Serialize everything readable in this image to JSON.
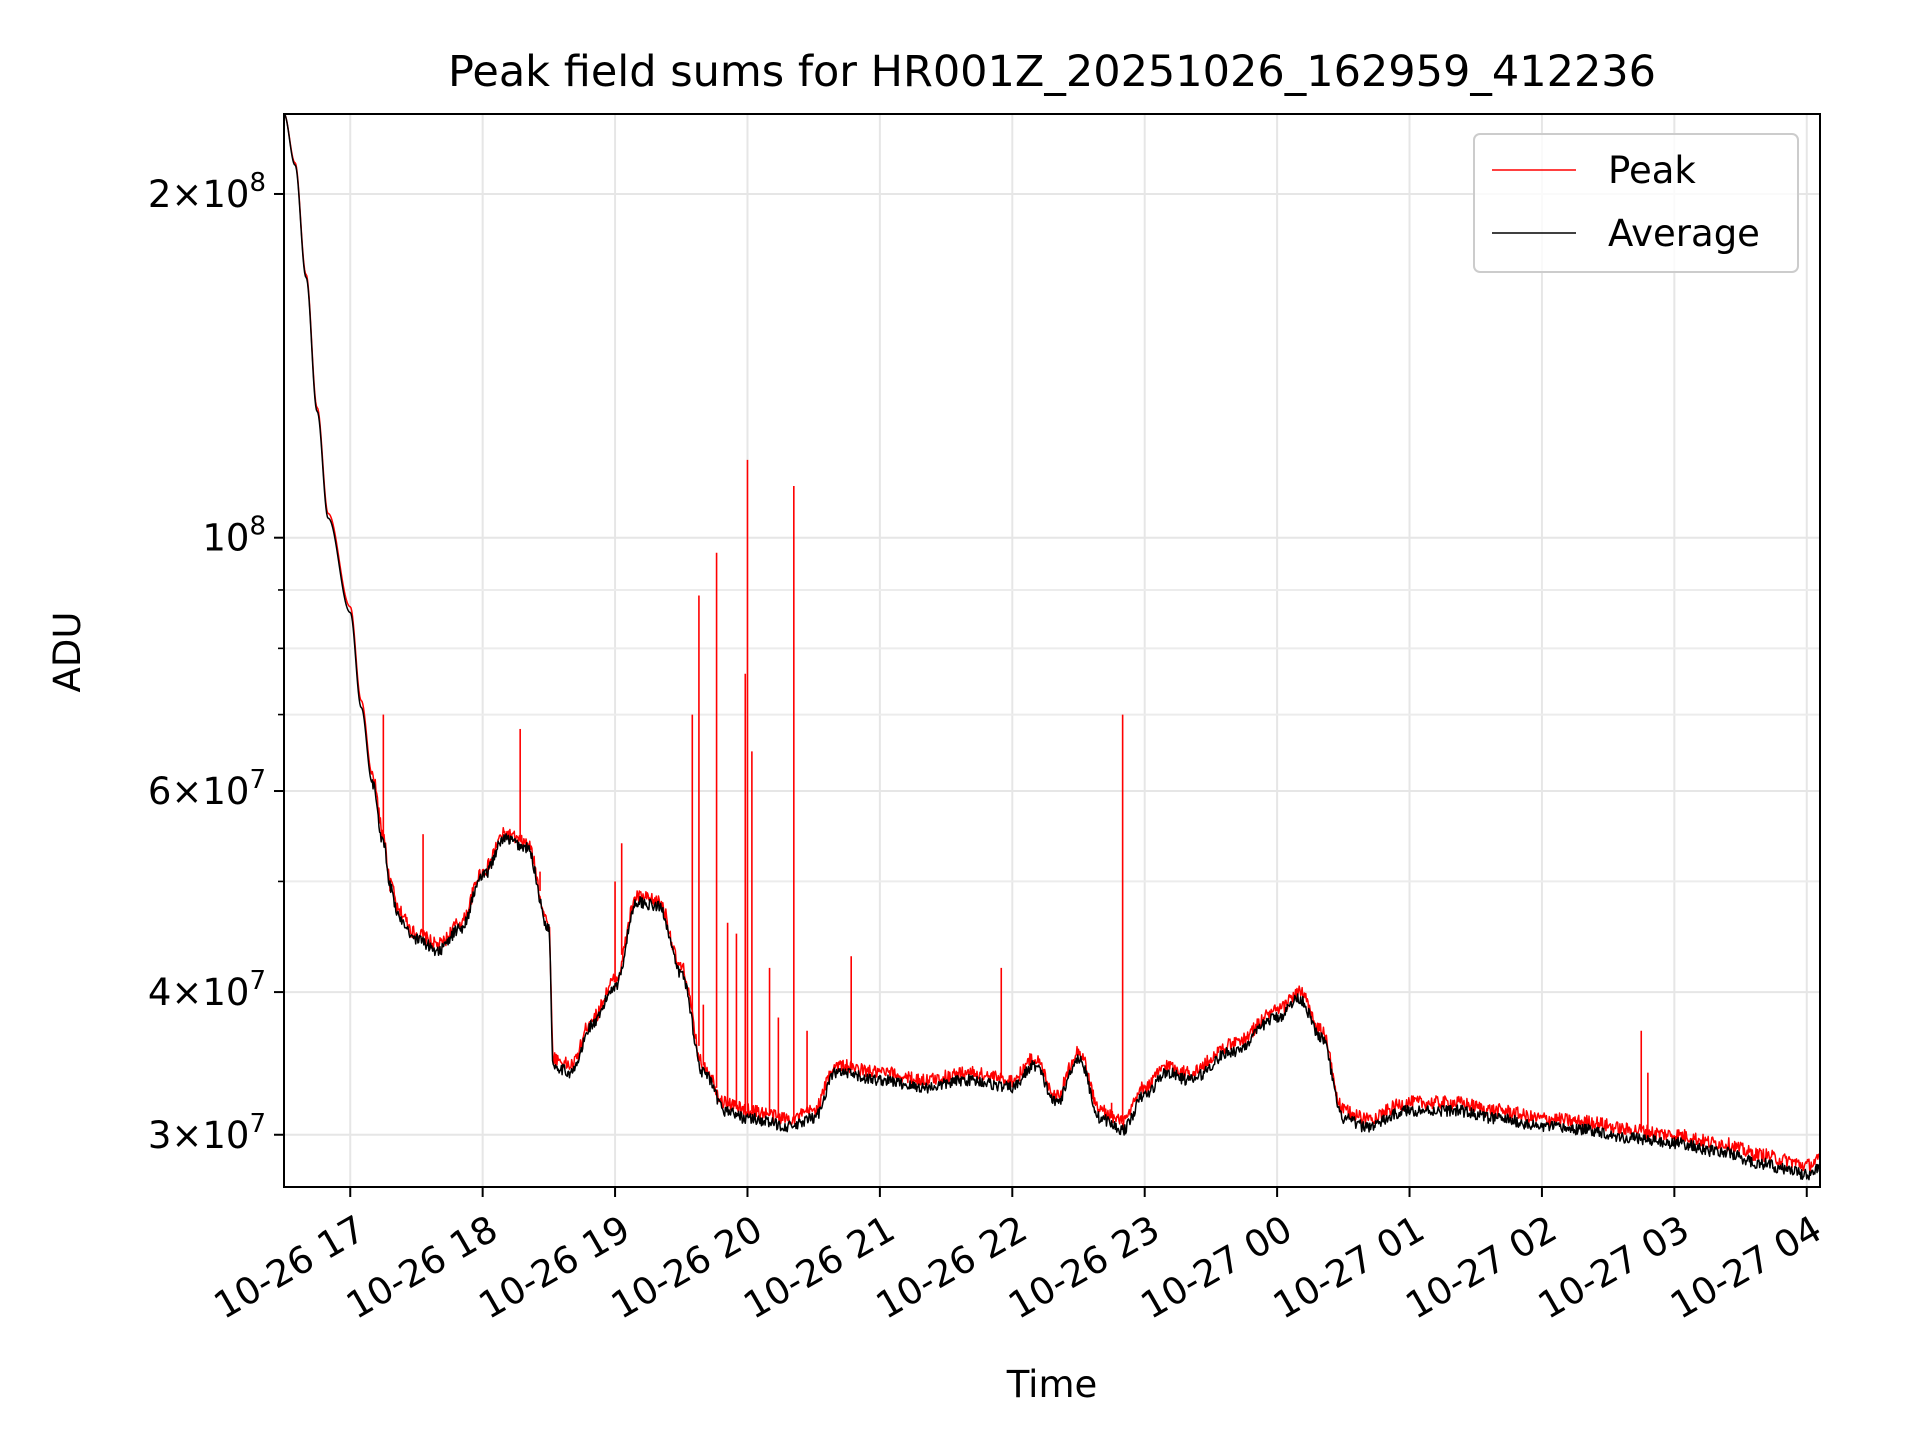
{
  "chart_data": {
    "type": "line",
    "title": "Peak field sums for HR001Z_20251026_162959_412236",
    "xlabel": "Time",
    "ylabel": "ADU",
    "yscale": "log",
    "grid": true,
    "legend_position": "top-right",
    "xlim": [
      "2025-10-26 16:29:59",
      "2025-10-27 04:06:00"
    ],
    "ylim": [
      27000000,
      235000000
    ],
    "x_ticks": [
      {
        "t": "2025-10-26 17:00",
        "label": "10-26 17"
      },
      {
        "t": "2025-10-26 18:00",
        "label": "10-26 18"
      },
      {
        "t": "2025-10-26 19:00",
        "label": "10-26 19"
      },
      {
        "t": "2025-10-26 20:00",
        "label": "10-26 20"
      },
      {
        "t": "2025-10-26 21:00",
        "label": "10-26 21"
      },
      {
        "t": "2025-10-26 22:00",
        "label": "10-26 22"
      },
      {
        "t": "2025-10-26 23:00",
        "label": "10-26 23"
      },
      {
        "t": "2025-10-27 00:00",
        "label": "10-27 00"
      },
      {
        "t": "2025-10-27 01:00",
        "label": "10-27 01"
      },
      {
        "t": "2025-10-27 02:00",
        "label": "10-27 02"
      },
      {
        "t": "2025-10-27 03:00",
        "label": "10-27 03"
      },
      {
        "t": "2025-10-27 04:00",
        "label": "10-27 04"
      }
    ],
    "y_major_ticks": [
      {
        "value": 30000000,
        "base": "3",
        "exp": "7"
      },
      {
        "value": 40000000,
        "base": "4",
        "exp": "7"
      },
      {
        "value": 60000000,
        "base": "6",
        "exp": "7"
      },
      {
        "value": 100000000,
        "base": "",
        "exp": "8"
      },
      {
        "value": 200000000,
        "base": "2",
        "exp": "8"
      }
    ],
    "y_minor_ticks": [
      50000000,
      70000000,
      80000000,
      90000000
    ],
    "series": [
      {
        "name": "Peak",
        "color": "#ff0000",
        "points": [
          [
            "2025-10-26 16:30",
            235000000
          ],
          [
            "2025-10-26 16:35",
            213000000
          ],
          [
            "2025-10-26 16:40",
            170000000
          ],
          [
            "2025-10-26 16:45",
            130000000
          ],
          [
            "2025-10-26 16:50",
            105000000
          ],
          [
            "2025-10-26 17:00",
            87000000
          ],
          [
            "2025-10-26 17:05",
            72000000
          ],
          [
            "2025-10-26 17:10",
            62000000
          ],
          [
            "2025-10-26 17:15",
            55000000
          ],
          [
            "2025-10-26 17:18",
            50000000
          ],
          [
            "2025-10-26 17:22",
            47000000
          ],
          [
            "2025-10-26 17:30",
            45000000
          ],
          [
            "2025-10-26 17:40",
            44000000
          ],
          [
            "2025-10-26 17:50",
            46000000
          ],
          [
            "2025-10-26 18:00",
            51000000
          ],
          [
            "2025-10-26 18:10",
            55000000
          ],
          [
            "2025-10-26 18:20",
            54000000
          ],
          [
            "2025-10-26 18:30",
            46000000
          ],
          [
            "2025-10-26 18:32",
            35000000
          ],
          [
            "2025-10-26 18:40",
            34500000
          ],
          [
            "2025-10-26 18:50",
            38000000
          ],
          [
            "2025-10-26 19:00",
            41000000
          ],
          [
            "2025-10-26 19:10",
            48500000
          ],
          [
            "2025-10-26 19:20",
            48000000
          ],
          [
            "2025-10-26 19:30",
            42000000
          ],
          [
            "2025-10-26 19:40",
            34500000
          ],
          [
            "2025-10-26 19:50",
            32000000
          ],
          [
            "2025-10-26 20:00",
            31500000
          ],
          [
            "2025-10-26 20:20",
            31000000
          ],
          [
            "2025-10-26 20:30",
            31500000
          ],
          [
            "2025-10-26 20:40",
            34500000
          ],
          [
            "2025-10-26 21:00",
            34000000
          ],
          [
            "2025-10-26 21:20",
            33500000
          ],
          [
            "2025-10-26 21:40",
            34000000
          ],
          [
            "2025-10-26 22:00",
            33500000
          ],
          [
            "2025-10-26 22:10",
            35000000
          ],
          [
            "2025-10-26 22:20",
            32500000
          ],
          [
            "2025-10-26 22:30",
            35500000
          ],
          [
            "2025-10-26 22:40",
            31500000
          ],
          [
            "2025-10-26 22:50",
            30800000
          ],
          [
            "2025-10-26 23:00",
            33000000
          ],
          [
            "2025-10-26 23:10",
            34500000
          ],
          [
            "2025-10-26 23:20",
            34000000
          ],
          [
            "2025-10-26 23:40",
            36000000
          ],
          [
            "2025-10-27 00:00",
            38500000
          ],
          [
            "2025-10-27 00:10",
            40000000
          ],
          [
            "2025-10-27 00:20",
            37000000
          ],
          [
            "2025-10-27 00:30",
            31500000
          ],
          [
            "2025-10-27 00:40",
            31000000
          ],
          [
            "2025-10-27 01:00",
            32000000
          ],
          [
            "2025-10-27 01:20",
            32000000
          ],
          [
            "2025-10-27 01:40",
            31500000
          ],
          [
            "2025-10-27 02:00",
            31000000
          ],
          [
            "2025-10-27 02:20",
            30800000
          ],
          [
            "2025-10-27 02:40",
            30300000
          ],
          [
            "2025-10-27 03:00",
            30000000
          ],
          [
            "2025-10-27 03:20",
            29500000
          ],
          [
            "2025-10-27 03:40",
            28800000
          ],
          [
            "2025-10-27 03:50",
            28500000
          ],
          [
            "2025-10-27 04:00",
            28200000
          ],
          [
            "2025-10-27 04:06",
            28500000
          ]
        ]
      },
      {
        "name": "Average",
        "color": "#000000",
        "points": [
          [
            "2025-10-26 16:30",
            235000000
          ],
          [
            "2025-10-26 16:35",
            212000000
          ],
          [
            "2025-10-26 16:40",
            169000000
          ],
          [
            "2025-10-26 16:45",
            129000000
          ],
          [
            "2025-10-26 16:50",
            104000000
          ],
          [
            "2025-10-26 17:00",
            86000000
          ],
          [
            "2025-10-26 17:05",
            71000000
          ],
          [
            "2025-10-26 17:10",
            61000000
          ],
          [
            "2025-10-26 17:15",
            54000000
          ],
          [
            "2025-10-26 17:18",
            49500000
          ],
          [
            "2025-10-26 17:22",
            46500000
          ],
          [
            "2025-10-26 17:30",
            44500000
          ],
          [
            "2025-10-26 17:40",
            43500000
          ],
          [
            "2025-10-26 17:50",
            45500000
          ],
          [
            "2025-10-26 18:00",
            50500000
          ],
          [
            "2025-10-26 18:10",
            54500000
          ],
          [
            "2025-10-26 18:20",
            53500000
          ],
          [
            "2025-10-26 18:30",
            45500000
          ],
          [
            "2025-10-26 18:32",
            34500000
          ],
          [
            "2025-10-26 18:40",
            34000000
          ],
          [
            "2025-10-26 18:50",
            37500000
          ],
          [
            "2025-10-26 19:00",
            40500000
          ],
          [
            "2025-10-26 19:10",
            48000000
          ],
          [
            "2025-10-26 19:20",
            47500000
          ],
          [
            "2025-10-26 19:30",
            41500000
          ],
          [
            "2025-10-26 19:40",
            34000000
          ],
          [
            "2025-10-26 19:50",
            31500000
          ],
          [
            "2025-10-26 20:00",
            31000000
          ],
          [
            "2025-10-26 20:20",
            30500000
          ],
          [
            "2025-10-26 20:30",
            31000000
          ],
          [
            "2025-10-26 20:40",
            34000000
          ],
          [
            "2025-10-26 21:00",
            33500000
          ],
          [
            "2025-10-26 21:20",
            33000000
          ],
          [
            "2025-10-26 21:40",
            33500000
          ],
          [
            "2025-10-26 22:00",
            33000000
          ],
          [
            "2025-10-26 22:10",
            34500000
          ],
          [
            "2025-10-26 22:20",
            32000000
          ],
          [
            "2025-10-26 22:30",
            35000000
          ],
          [
            "2025-10-26 22:40",
            31000000
          ],
          [
            "2025-10-26 22:50",
            30300000
          ],
          [
            "2025-10-26 23:00",
            32500000
          ],
          [
            "2025-10-26 23:10",
            34000000
          ],
          [
            "2025-10-26 23:20",
            33500000
          ],
          [
            "2025-10-26 23:40",
            35500000
          ],
          [
            "2025-10-27 00:00",
            38000000
          ],
          [
            "2025-10-27 00:10",
            39500000
          ],
          [
            "2025-10-27 00:20",
            36500000
          ],
          [
            "2025-10-27 00:30",
            31000000
          ],
          [
            "2025-10-27 00:40",
            30500000
          ],
          [
            "2025-10-27 01:00",
            31500000
          ],
          [
            "2025-10-27 01:20",
            31500000
          ],
          [
            "2025-10-27 01:40",
            31000000
          ],
          [
            "2025-10-27 02:00",
            30500000
          ],
          [
            "2025-10-27 02:20",
            30300000
          ],
          [
            "2025-10-27 02:40",
            29800000
          ],
          [
            "2025-10-27 03:00",
            29500000
          ],
          [
            "2025-10-27 03:20",
            29000000
          ],
          [
            "2025-10-27 03:40",
            28300000
          ],
          [
            "2025-10-27 03:50",
            28000000
          ],
          [
            "2025-10-27 04:00",
            27700000
          ],
          [
            "2025-10-27 04:06",
            28000000
          ]
        ]
      }
    ],
    "peak_spikes": [
      [
        "2025-10-26 17:15",
        70000000
      ],
      [
        "2025-10-26 17:18",
        49000000
      ],
      [
        "2025-10-26 17:33",
        55000000
      ],
      [
        "2025-10-26 18:17",
        68000000
      ],
      [
        "2025-10-26 18:26",
        51000000
      ],
      [
        "2025-10-26 19:00",
        50000000
      ],
      [
        "2025-10-26 19:03",
        54000000
      ],
      [
        "2025-10-26 19:35",
        70000000
      ],
      [
        "2025-10-26 19:38",
        89000000
      ],
      [
        "2025-10-26 19:40",
        39000000
      ],
      [
        "2025-10-26 19:46",
        97000000
      ],
      [
        "2025-10-26 19:51",
        46000000
      ],
      [
        "2025-10-26 19:55",
        45000000
      ],
      [
        "2025-10-26 19:59",
        76000000
      ],
      [
        "2025-10-26 20:00",
        117000000
      ],
      [
        "2025-10-26 20:02",
        65000000
      ],
      [
        "2025-10-26 20:10",
        42000000
      ],
      [
        "2025-10-26 20:14",
        38000000
      ],
      [
        "2025-10-26 20:21",
        111000000
      ],
      [
        "2025-10-26 20:27",
        37000000
      ],
      [
        "2025-10-26 20:47",
        43000000
      ],
      [
        "2025-10-26 21:55",
        42000000
      ],
      [
        "2025-10-26 22:45",
        32000000
      ],
      [
        "2025-10-26 22:50",
        70000000
      ],
      [
        "2025-10-27 02:45",
        37000000
      ],
      [
        "2025-10-27 02:48",
        34000000
      ]
    ]
  }
}
